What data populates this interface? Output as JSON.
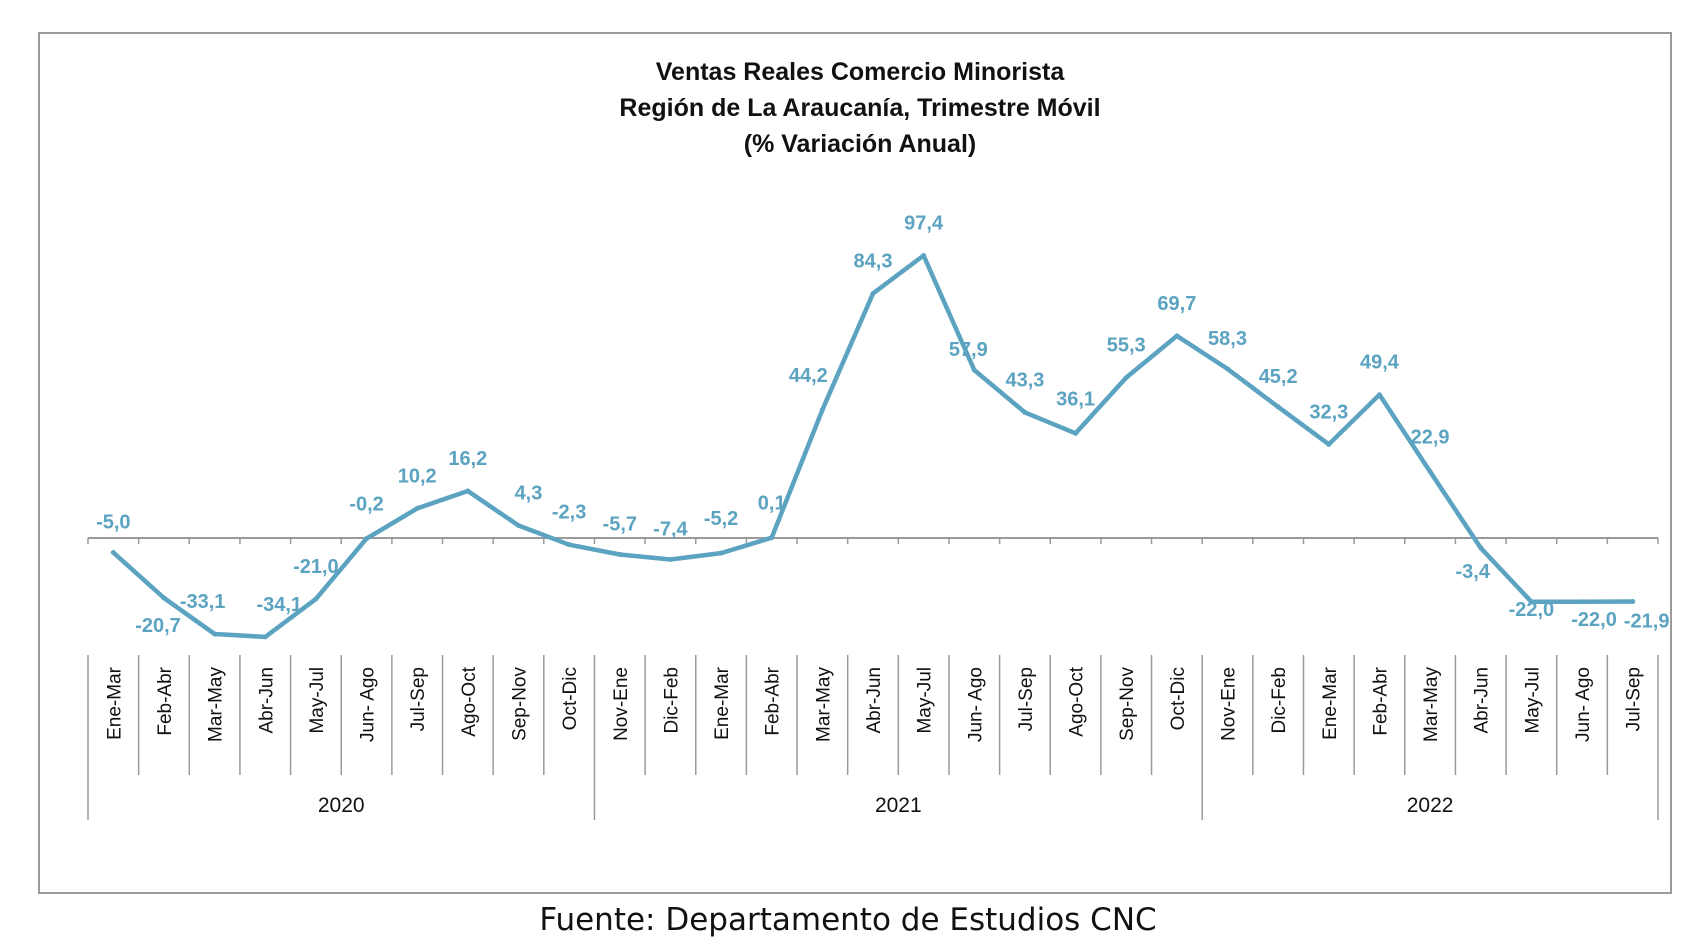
{
  "chart_data": {
    "type": "line",
    "title": [
      "Ventas Reales Comercio Minorista",
      "Región de La Araucanía, Trimestre Móvil",
      "(% Variación Anual)"
    ],
    "categories": [
      "Ene-Mar",
      "Feb-Abr",
      "Mar-May",
      "Abr-Jun",
      "May-Jul",
      "Jun- Ago",
      "Jul-Sep",
      "Ago-Oct",
      "Sep-Nov",
      "Oct-Dic",
      "Nov-Ene",
      "Dic-Feb",
      "Ene-Mar",
      "Feb-Abr",
      "Mar-May",
      "Abr-Jun",
      "May-Jul",
      "Jun- Ago",
      "Jul-Sep",
      "Ago-Oct",
      "Sep-Nov",
      "Oct-Dic",
      "Nov-Ene",
      "Dic-Feb",
      "Ene-Mar",
      "Feb-Abr",
      "Mar-May",
      "Abr-Jun",
      "May-Jul",
      "Jun- Ago",
      "Jul-Sep"
    ],
    "values": [
      -5.0,
      -20.7,
      -33.1,
      -34.1,
      -21.0,
      -0.2,
      10.2,
      16.2,
      4.3,
      -2.3,
      -5.7,
      -7.4,
      -5.2,
      0.1,
      44.2,
      84.3,
      97.4,
      57.9,
      43.3,
      36.1,
      55.3,
      69.7,
      58.3,
      45.2,
      32.3,
      49.4,
      22.9,
      -3.4,
      -22.0,
      -22.0,
      -21.9
    ],
    "data_labels": [
      "-5,0",
      "-20,7",
      "-33,1",
      "-34,1",
      "-21,0",
      "-0,2",
      "10,2",
      "16,2",
      "4,3",
      "-2,3",
      "-5,7",
      "-7,4",
      "-5,2",
      "0,1",
      "44,2",
      "84,3",
      "97,4",
      "57,9",
      "43,3",
      "36,1",
      "55,3",
      "69,7",
      "58,3",
      "45,2",
      "32,3",
      "49,4",
      "22,9",
      "-3,4",
      "-22,0",
      "-22,0",
      "-21,9"
    ],
    "groups": [
      {
        "label": "2020",
        "count": 10
      },
      {
        "label": "2021",
        "count": 12
      },
      {
        "label": "2022",
        "count": 9
      }
    ],
    "xlabel": "",
    "ylabel": "",
    "grid": false,
    "legend": "none",
    "colors": {
      "line": "#5ba3c1",
      "labels": "#5ba3c1",
      "axis": "#9a9a9a",
      "frame": "#9a9a9a"
    }
  },
  "source": "Fuente: Departamento de Estudios CNC"
}
